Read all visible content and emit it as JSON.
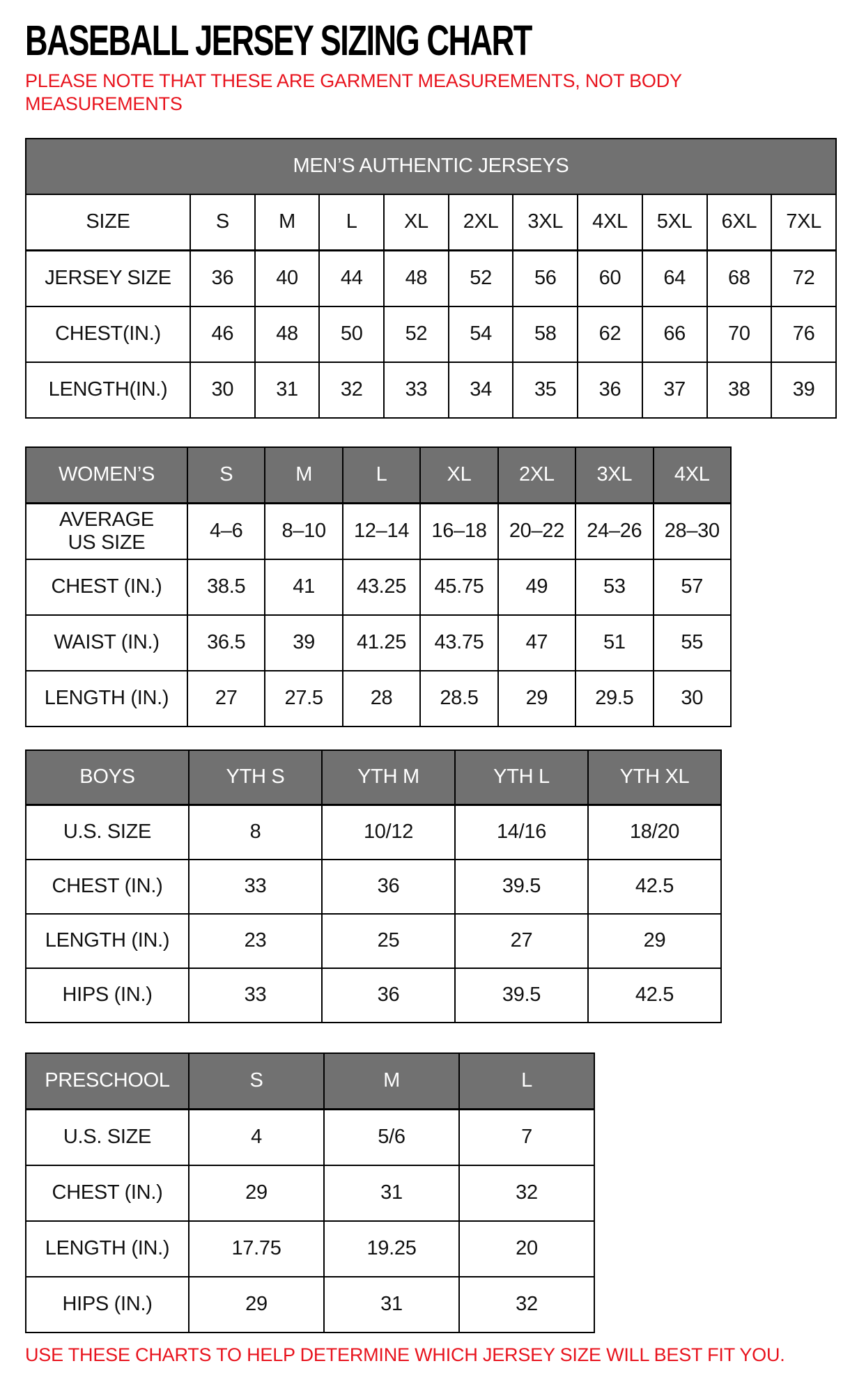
{
  "page": {
    "title": "BASEBALL JERSEY SIZING CHART",
    "note": "PLEASE NOTE THAT THESE ARE GARMENT MEASUREMENTS, NOT BODY MEASUREMENTS",
    "footer": "USE THESE CHARTS TO HELP DETERMINE WHICH JERSEY SIZE WILL BEST FIT YOU."
  },
  "colors": {
    "accent_red": "#e8131d",
    "header_gray": "#717171",
    "border_black": "#000000",
    "header_text_white": "#ffffff"
  },
  "tables": [
    {
      "id": "mens",
      "banner": "MEN’S AUTHENTIC JERSEYS",
      "header_gray": false,
      "columns": [
        "SIZE",
        "S",
        "M",
        "L",
        "XL",
        "2XL",
        "3XL",
        "4XL",
        "5XL",
        "6XL",
        "7XL"
      ],
      "rows": [
        {
          "label": "JERSEY SIZE",
          "values": [
            "36",
            "40",
            "44",
            "48",
            "52",
            "56",
            "60",
            "64",
            "68",
            "72"
          ]
        },
        {
          "label": "CHEST(IN.)",
          "values": [
            "46",
            "48",
            "50",
            "52",
            "54",
            "58",
            "62",
            "66",
            "70",
            "76"
          ]
        },
        {
          "label": "LENGTH(IN.)",
          "values": [
            "30",
            "31",
            "32",
            "33",
            "34",
            "35",
            "36",
            "37",
            "38",
            "39"
          ]
        }
      ]
    },
    {
      "id": "womens",
      "banner": null,
      "header_gray": true,
      "columns": [
        "WOMEN’S",
        "S",
        "M",
        "L",
        "XL",
        "2XL",
        "3XL",
        "4XL"
      ],
      "rows": [
        {
          "label": "AVERAGE\nUS SIZE",
          "values": [
            "4–6",
            "8–10",
            "12–14",
            "16–18",
            "20–22",
            "24–26",
            "28–30"
          ]
        },
        {
          "label": "CHEST (IN.)",
          "values": [
            "38.5",
            "41",
            "43.25",
            "45.75",
            "49",
            "53",
            "57"
          ]
        },
        {
          "label": "WAIST (IN.)",
          "values": [
            "36.5",
            "39",
            "41.25",
            "43.75",
            "47",
            "51",
            "55"
          ]
        },
        {
          "label": "LENGTH (IN.)",
          "values": [
            "27",
            "27.5",
            "28",
            "28.5",
            "29",
            "29.5",
            "30"
          ]
        }
      ]
    },
    {
      "id": "boys",
      "banner": null,
      "header_gray": true,
      "columns": [
        "BOYS",
        "YTH S",
        "YTH M",
        "YTH L",
        "YTH XL"
      ],
      "rows": [
        {
          "label": "U.S. SIZE",
          "values": [
            "8",
            "10/12",
            "14/16",
            "18/20"
          ]
        },
        {
          "label": "CHEST (IN.)",
          "values": [
            "33",
            "36",
            "39.5",
            "42.5"
          ]
        },
        {
          "label": "LENGTH (IN.)",
          "values": [
            "23",
            "25",
            "27",
            "29"
          ]
        },
        {
          "label": "HIPS (IN.)",
          "values": [
            "33",
            "36",
            "39.5",
            "42.5"
          ]
        }
      ]
    },
    {
      "id": "preschool",
      "banner": null,
      "header_gray": true,
      "columns": [
        "PRESCHOOL",
        "S",
        "M",
        "L"
      ],
      "rows": [
        {
          "label": "U.S. SIZE",
          "values": [
            "4",
            "5/6",
            "7"
          ]
        },
        {
          "label": "CHEST (IN.)",
          "values": [
            "29",
            "31",
            "32"
          ]
        },
        {
          "label": "LENGTH (IN.)",
          "values": [
            "17.75",
            "19.25",
            "20"
          ]
        },
        {
          "label": "HIPS (IN.)",
          "values": [
            "29",
            "31",
            "32"
          ]
        }
      ]
    }
  ]
}
